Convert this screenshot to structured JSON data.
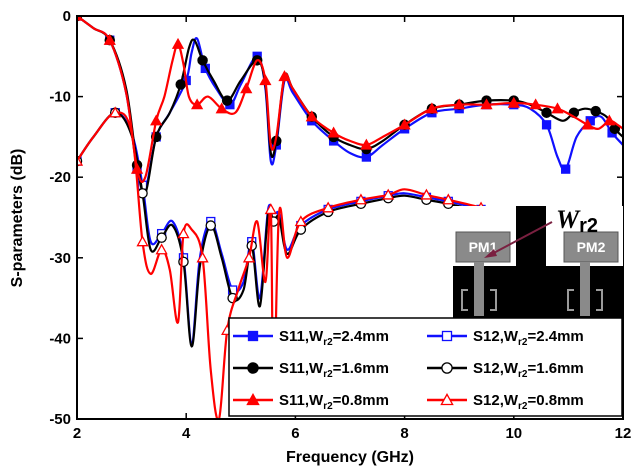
{
  "chart_data": {
    "type": "line",
    "title": "",
    "xlabel": "Frequency (GHz)",
    "ylabel": "S-parameters (dB)",
    "xlim": [
      2,
      12
    ],
    "ylim": [
      -50,
      0
    ],
    "xticks": [
      2,
      4,
      6,
      8,
      10,
      12
    ],
    "yticks": [
      0,
      -10,
      -20,
      -30,
      -40,
      -50
    ],
    "grid": false,
    "legend_position": "bottom-right",
    "series": [
      {
        "name": "S11,W_r2=2.4mm",
        "legend_main": "S11,W",
        "legend_sub": "r2",
        "legend_tail": "=2.4mm",
        "color": "#1010ff",
        "marker": "square",
        "filled": true,
        "x": [
          2.0,
          2.3,
          2.6,
          2.9,
          3.1,
          3.25,
          3.45,
          3.7,
          4.0,
          4.1,
          4.2,
          4.35,
          4.55,
          4.8,
          5.0,
          5.3,
          5.45,
          5.55,
          5.65,
          5.8,
          5.95,
          6.3,
          6.7,
          7.0,
          7.3,
          7.6,
          8.0,
          8.5,
          9.0,
          9.5,
          10.0,
          10.3,
          10.6,
          10.8,
          10.95,
          11.15,
          11.4,
          11.6,
          11.8,
          12.0
        ],
        "y": [
          0,
          -1.5,
          -3.0,
          -9.5,
          -19,
          -21.5,
          -15,
          -12,
          -8,
          -4.5,
          -2.8,
          -6.5,
          -9,
          -11,
          -8.5,
          -5,
          -9,
          -18,
          -16,
          -8,
          -9.5,
          -13,
          -15.5,
          -17,
          -17.5,
          -16,
          -14,
          -12,
          -11.5,
          -11,
          -11,
          -11.5,
          -13.5,
          -17.5,
          -19,
          -15,
          -13,
          -12.5,
          -14.5,
          -16
        ]
      },
      {
        "name": "S12,W_r2=2.4mm",
        "legend_main": "S12,W",
        "legend_sub": "r2",
        "legend_tail": "=2.4mm",
        "color": "#1010ff",
        "marker": "square",
        "filled": false,
        "x": [
          2.0,
          2.3,
          2.7,
          3.0,
          3.2,
          3.35,
          3.55,
          3.75,
          3.95,
          4.1,
          4.25,
          4.45,
          4.65,
          4.85,
          5.05,
          5.2,
          5.35,
          5.5,
          5.6,
          5.7,
          5.85,
          6.1,
          6.6,
          7.2,
          7.7,
          8.0,
          8.4,
          8.8,
          9.4,
          9.8,
          10.2,
          10.6,
          11.0,
          11.4,
          11.7,
          12.0
        ],
        "y": [
          -18,
          -15,
          -12,
          -14.5,
          -21,
          -28,
          -27,
          -25.5,
          -30,
          -40.5,
          -30,
          -25.5,
          -29.5,
          -34,
          -33,
          -28,
          -35,
          -24,
          -25,
          -24.5,
          -29,
          -26,
          -24,
          -23,
          -22.3,
          -22,
          -22.5,
          -23,
          -24,
          -25,
          -26,
          -27,
          -28,
          -28.5,
          -27,
          -26
        ]
      },
      {
        "name": "S11,W_r2=1.6mm",
        "legend_main": "S11,W",
        "legend_sub": "r2",
        "legend_tail": "=1.6mm",
        "color": "#000000",
        "marker": "circle",
        "filled": true,
        "x": [
          2.0,
          2.3,
          2.6,
          2.9,
          3.1,
          3.25,
          3.45,
          3.7,
          3.9,
          4.05,
          4.15,
          4.3,
          4.5,
          4.75,
          5.0,
          5.3,
          5.45,
          5.55,
          5.65,
          5.8,
          5.95,
          6.3,
          6.7,
          7.0,
          7.3,
          7.6,
          8.0,
          8.5,
          9.0,
          9.5,
          10.0,
          10.3,
          10.6,
          10.9,
          11.1,
          11.3,
          11.5,
          11.7,
          11.85,
          12.0
        ],
        "y": [
          0,
          -1.5,
          -3.0,
          -9.0,
          -18.5,
          -22,
          -15,
          -12,
          -8.5,
          -4,
          -3,
          -5.5,
          -8,
          -10.5,
          -8,
          -5.5,
          -8.5,
          -17,
          -15.5,
          -7.5,
          -9,
          -12.5,
          -15,
          -16,
          -16.5,
          -15.5,
          -13.5,
          -11.5,
          -11,
          -10.5,
          -10.5,
          -11,
          -12,
          -13,
          -12,
          -11.5,
          -11.8,
          -12.5,
          -14,
          -15
        ]
      },
      {
        "name": "S12,W_r2=1.6mm",
        "legend_main": "S12,W",
        "legend_sub": "r2",
        "legend_tail": "=1.6mm",
        "color": "#000000",
        "marker": "circle",
        "filled": false,
        "x": [
          2.0,
          2.3,
          2.7,
          3.0,
          3.2,
          3.35,
          3.55,
          3.75,
          3.95,
          4.1,
          4.25,
          4.45,
          4.65,
          4.85,
          5.05,
          5.2,
          5.35,
          5.5,
          5.6,
          5.7,
          5.85,
          6.1,
          6.6,
          7.2,
          7.7,
          8.0,
          8.4,
          8.8,
          9.4,
          9.8,
          10.2,
          10.6,
          11.0,
          11.4,
          11.7,
          12.0
        ],
        "y": [
          -18,
          -15,
          -12,
          -14.8,
          -22,
          -29,
          -27.5,
          -26,
          -30.5,
          -41,
          -31,
          -26,
          -30,
          -35,
          -34,
          -28.5,
          -36,
          -24.5,
          -25.5,
          -25,
          -29.5,
          -26.5,
          -24.3,
          -23.3,
          -22.6,
          -22.3,
          -22.8,
          -23.3,
          -24.3,
          -25.3,
          -26.3,
          -27.3,
          -28.3,
          -28.8,
          -27.3,
          -26.3
        ]
      },
      {
        "name": "S11,W_r2=0.8mm",
        "legend_main": "S11,W",
        "legend_sub": "r2",
        "legend_tail": "=0.8mm",
        "color": "#ff0000",
        "marker": "triangle",
        "filled": true,
        "x": [
          2.0,
          2.3,
          2.6,
          2.9,
          3.1,
          3.25,
          3.45,
          3.6,
          3.75,
          3.85,
          3.95,
          4.05,
          4.2,
          4.4,
          4.65,
          4.9,
          5.1,
          5.3,
          5.45,
          5.55,
          5.65,
          5.8,
          5.95,
          6.3,
          6.7,
          7.0,
          7.3,
          7.6,
          8.0,
          8.5,
          9.0,
          9.5,
          10.0,
          10.4,
          10.8,
          11.1,
          11.35,
          11.55,
          11.75,
          11.9,
          12.0
        ],
        "y": [
          0,
          -1.5,
          -3.0,
          -9.5,
          -19,
          -20,
          -13,
          -10,
          -5.5,
          -3.5,
          -6,
          -10,
          -11,
          -10,
          -11.5,
          -12,
          -9,
          -5.5,
          -8,
          -16,
          -15,
          -7.5,
          -9,
          -12.5,
          -14.5,
          -15.5,
          -16,
          -15,
          -13.5,
          -11.5,
          -11,
          -11,
          -10.8,
          -11,
          -11.5,
          -12.5,
          -13.5,
          -14,
          -13,
          -13.5,
          -14
        ]
      },
      {
        "name": "S12,W_r2=0.8mm",
        "legend_main": "S12,W",
        "legend_sub": "r2",
        "legend_tail": "=0.8mm",
        "color": "#ff0000",
        "marker": "triangle",
        "filled": false,
        "x": [
          2.0,
          2.3,
          2.7,
          3.0,
          3.2,
          3.35,
          3.55,
          3.7,
          3.85,
          3.95,
          4.1,
          4.3,
          4.45,
          4.6,
          4.75,
          4.95,
          5.15,
          5.3,
          5.45,
          5.55,
          5.6,
          5.7,
          5.85,
          6.1,
          6.6,
          7.2,
          7.7,
          8.0,
          8.4,
          8.8,
          9.4,
          9.8,
          10.2,
          10.6,
          11.0,
          11.4,
          11.7,
          12.0
        ],
        "y": [
          -18,
          -15,
          -12,
          -14.5,
          -28,
          -32,
          -29,
          -31.5,
          -38,
          -27,
          -26.5,
          -30,
          -44,
          -50,
          -39,
          -34,
          -30,
          -25.5,
          -33,
          -24,
          -49,
          -24.5,
          -30,
          -25.5,
          -23.8,
          -22.8,
          -22.2,
          -21.5,
          -22.2,
          -22.8,
          -23.8,
          -24.8,
          -25.8,
          -26.8,
          -27.8,
          -28.5,
          -27,
          -26
        ]
      }
    ],
    "inset": {
      "label_main": "W",
      "label_sub": "r2",
      "port1": "PM1",
      "port2": "PM2"
    }
  }
}
